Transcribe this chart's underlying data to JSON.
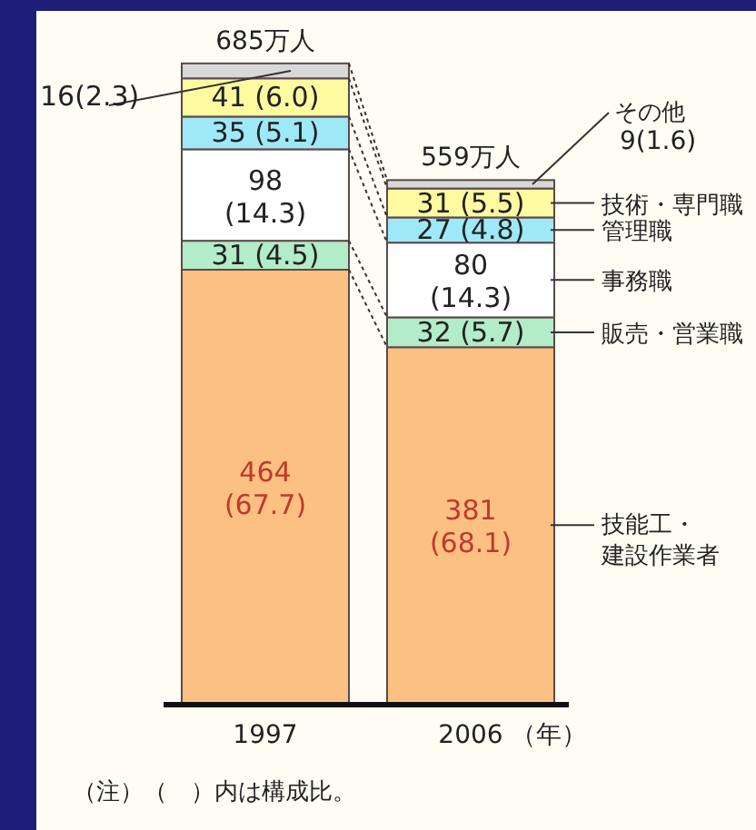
{
  "chart_data": {
    "type": "bar",
    "stacked": true,
    "categories": [
      "1997",
      "2006"
    ],
    "xlabel": "（年）",
    "totals": [
      "685万人",
      "559万人"
    ],
    "series": [
      {
        "name": "技能工・建設作業者",
        "color": "#fdc083",
        "values": [
          464,
          381
        ],
        "value_labels": [
          "464 (67.7)",
          "381 (68.1)"
        ]
      },
      {
        "name": "販売・営業職",
        "color": "#b3ecc8",
        "values": [
          31,
          32
        ],
        "value_labels": [
          "31 (4.5)",
          "32 (5.7)"
        ]
      },
      {
        "name": "事務職",
        "color": "#ffffff",
        "values": [
          98,
          80
        ],
        "value_labels": [
          "98 (14.3)",
          "80 (14.3)"
        ]
      },
      {
        "name": "管理職",
        "color": "#9fe8f8",
        "values": [
          35,
          27
        ],
        "value_labels": [
          "35 (5.1)",
          "27 (4.8)"
        ]
      },
      {
        "name": "技術・専門職",
        "color": "#fefaa0",
        "values": [
          41,
          31
        ],
        "value_labels": [
          "41 (6.0)",
          "31 (5.5)"
        ]
      },
      {
        "name": "その他",
        "color": "#d8d8d8",
        "values": [
          16,
          9
        ],
        "value_labels": [
          "16(2.3)",
          "9(1.6)"
        ]
      }
    ],
    "annotations": [
      "（注）（　）内は構成比。"
    ]
  }
}
